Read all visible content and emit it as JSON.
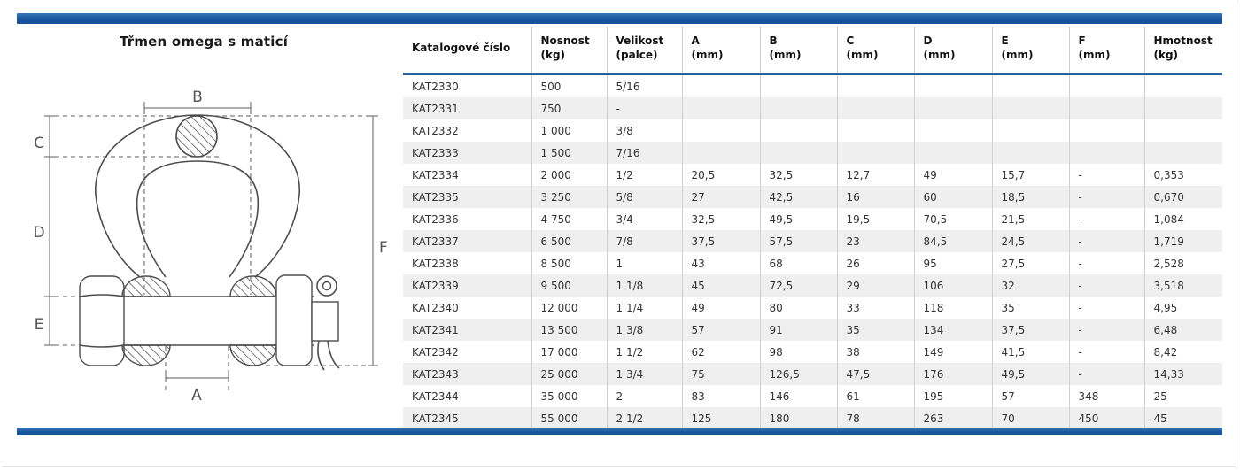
{
  "product": {
    "title": "Třmen omega s maticí"
  },
  "diagram": {
    "labels": {
      "A": "A",
      "B": "B",
      "C": "C",
      "D": "D",
      "E": "E",
      "F": "F"
    }
  },
  "table": {
    "columns": [
      {
        "label": "Katalogové číslo",
        "unit": ""
      },
      {
        "label": "Nosnost",
        "unit": "(kg)"
      },
      {
        "label": "Velikost",
        "unit": "(palce)"
      },
      {
        "label": "A",
        "unit": "(mm)"
      },
      {
        "label": "B",
        "unit": "(mm)"
      },
      {
        "label": "C",
        "unit": "(mm)"
      },
      {
        "label": "D",
        "unit": "(mm)"
      },
      {
        "label": "E",
        "unit": "(mm)"
      },
      {
        "label": "F",
        "unit": "(mm)"
      },
      {
        "label": "Hmotnost",
        "unit": "(kg)"
      }
    ],
    "rows": [
      [
        "KAT2330",
        "500",
        "5/16",
        "",
        "",
        "",
        "",
        "",
        "",
        ""
      ],
      [
        "KAT2331",
        "750",
        "-",
        "",
        "",
        "",
        "",
        "",
        "",
        ""
      ],
      [
        "KAT2332",
        "1 000",
        "3/8",
        "",
        "",
        "",
        "",
        "",
        "",
        ""
      ],
      [
        "KAT2333",
        "1 500",
        "7/16",
        "",
        "",
        "",
        "",
        "",
        "",
        ""
      ],
      [
        "KAT2334",
        "2 000",
        "1/2",
        "20,5",
        "32,5",
        "12,7",
        "49",
        "15,7",
        "-",
        "0,353"
      ],
      [
        "KAT2335",
        "3 250",
        "5/8",
        "27",
        "42,5",
        "16",
        "60",
        "18,5",
        "-",
        "0,670"
      ],
      [
        "KAT2336",
        "4 750",
        "3/4",
        "32,5",
        "49,5",
        "19,5",
        "70,5",
        "21,5",
        "-",
        "1,084"
      ],
      [
        "KAT2337",
        "6 500",
        "7/8",
        "37,5",
        "57,5",
        "23",
        "84,5",
        "24,5",
        "-",
        "1,719"
      ],
      [
        "KAT2338",
        "8 500",
        "1",
        "43",
        "68",
        "26",
        "95",
        "27,5",
        "-",
        "2,528"
      ],
      [
        "KAT2339",
        "9 500",
        "1 1/8",
        "45",
        "72,5",
        "29",
        "106",
        "32",
        "-",
        "3,518"
      ],
      [
        "KAT2340",
        "12 000",
        "1 1/4",
        "49",
        "80",
        "33",
        "118",
        "35",
        "-",
        "4,95"
      ],
      [
        "KAT2341",
        "13 500",
        "1 3/8",
        "57",
        "91",
        "35",
        "134",
        "37,5",
        "-",
        "6,48"
      ],
      [
        "KAT2342",
        "17 000",
        "1 1/2",
        "62",
        "98",
        "38",
        "149",
        "41,5",
        "-",
        "8,42"
      ],
      [
        "KAT2343",
        "25 000",
        "1 3/4",
        "75",
        "126,5",
        "47,5",
        "176",
        "49,5",
        "-",
        "14,33"
      ],
      [
        "KAT2344",
        "35 000",
        "2",
        "83",
        "146",
        "61",
        "195",
        "57",
        "348",
        "25"
      ],
      [
        "KAT2345",
        "55 000",
        "2 1/2",
        "125",
        "180",
        "78",
        "263",
        "70",
        "450",
        "45"
      ]
    ]
  },
  "colors": {
    "accent_blue": "#1d5da4",
    "header_rule": "#26639c",
    "row_alt": "#efefef",
    "grid_line": "#cfcfcf"
  }
}
